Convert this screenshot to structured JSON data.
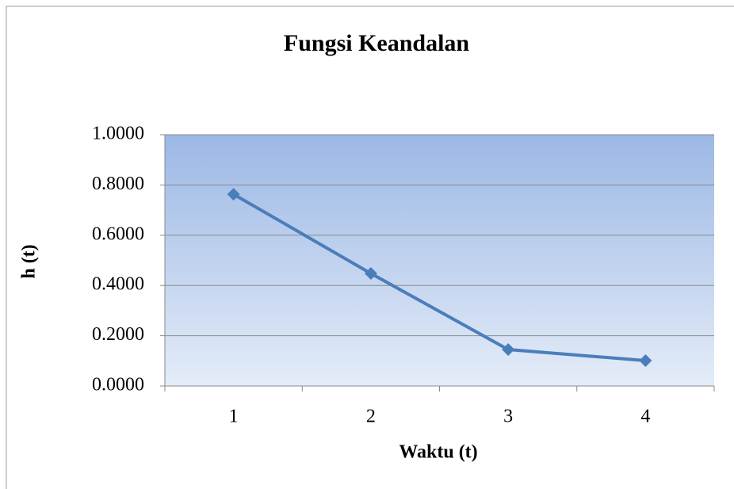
{
  "chart_data": {
    "type": "line",
    "title": "Fungsi Keandalan",
    "x_label": "Waktu (t)",
    "y_label": "h (t)",
    "categories": [
      "1",
      "2",
      "3",
      "4"
    ],
    "series": [
      {
        "name": "h (t)",
        "color": "#4a7ebb",
        "values": [
          0.763,
          0.448,
          0.145,
          0.101
        ]
      }
    ],
    "ylim": [
      0,
      1
    ],
    "yticks": [
      {
        "value": 0,
        "label": "0.0000"
      },
      {
        "value": 0.2,
        "label": "0.2000"
      },
      {
        "value": 0.4,
        "label": "0.4000"
      },
      {
        "value": 0.6,
        "label": "0.6000"
      },
      {
        "value": 0.8,
        "label": "0.8000"
      },
      {
        "value": 1,
        "label": "1.0000"
      }
    ],
    "grid": true
  }
}
